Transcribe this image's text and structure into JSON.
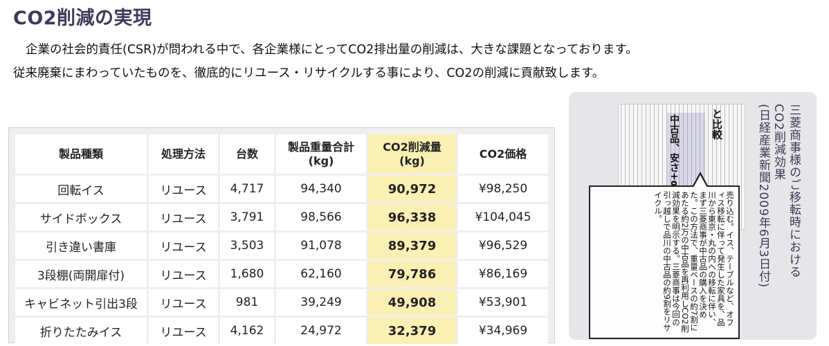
{
  "title": "CO2削減の実現",
  "lead": {
    "line1": "企業の社会的責任(CSR)が問われる中で、各企業様にとってCO2排出量の削減は、大きな課題となっております。",
    "line2": "従来廃棄にまわっていたものを、徹底的にリユース・リサイクルする事により、CO2の削減に貢献致します。"
  },
  "table": {
    "headers": {
      "product": "製品種類",
      "method": "処理方法",
      "units": "台数",
      "weight_line1": "製品重量合計",
      "weight_line2": "(kg)",
      "co2_line1": "CO2削減量",
      "co2_line2": "(kg)",
      "price": "CO2価格"
    },
    "rows": [
      {
        "product": "回転イス",
        "method": "リユース",
        "units": "4,717",
        "weight": "94,340",
        "co2": "90,972",
        "price": "¥98,250"
      },
      {
        "product": "サイドボックス",
        "method": "リユース",
        "units": "3,791",
        "weight": "98,566",
        "co2": "96,338",
        "price": "¥104,045"
      },
      {
        "product": "引き違い書庫",
        "method": "リユース",
        "units": "3,503",
        "weight": "91,078",
        "co2": "89,379",
        "price": "¥96,529"
      },
      {
        "product": "3段棚(両開扉付)",
        "method": "リユース",
        "units": "1,680",
        "weight": "62,160",
        "co2": "79,786",
        "price": "¥86,169"
      },
      {
        "product": "キャビネット引出3段",
        "method": "リユース",
        "units": "981",
        "weight": "39,249",
        "co2": "49,908",
        "price": "¥53,901"
      },
      {
        "product": "折りたたみイス",
        "method": "リユース",
        "units": "4,162",
        "weight": "24,972",
        "co2": "32,379",
        "price": "¥34,969"
      }
    ]
  },
  "clipping": {
    "headline_a": "と比較",
    "headline_b": "中古品、安さ+α訴える",
    "zoom_text": "売り込む。イス、テーブルなど、オフィス移転に伴って発生した家具を、品川から東京・丸の内への移転に伴い、まず三菱商事が中古品の購入を決めた。この方法で、重量ベースの約7割にあたる約2万の中古品を再利用しCO2削減効果を明示する。三菱商事は今回の引っ越しで品川の中古品の約9割をリサイクル。",
    "caption_line1": "三菱商事様のご移転時における",
    "caption_line2": "CO2削減効果",
    "caption_line3": "(日経産業新聞2009年6月3日付)"
  }
}
